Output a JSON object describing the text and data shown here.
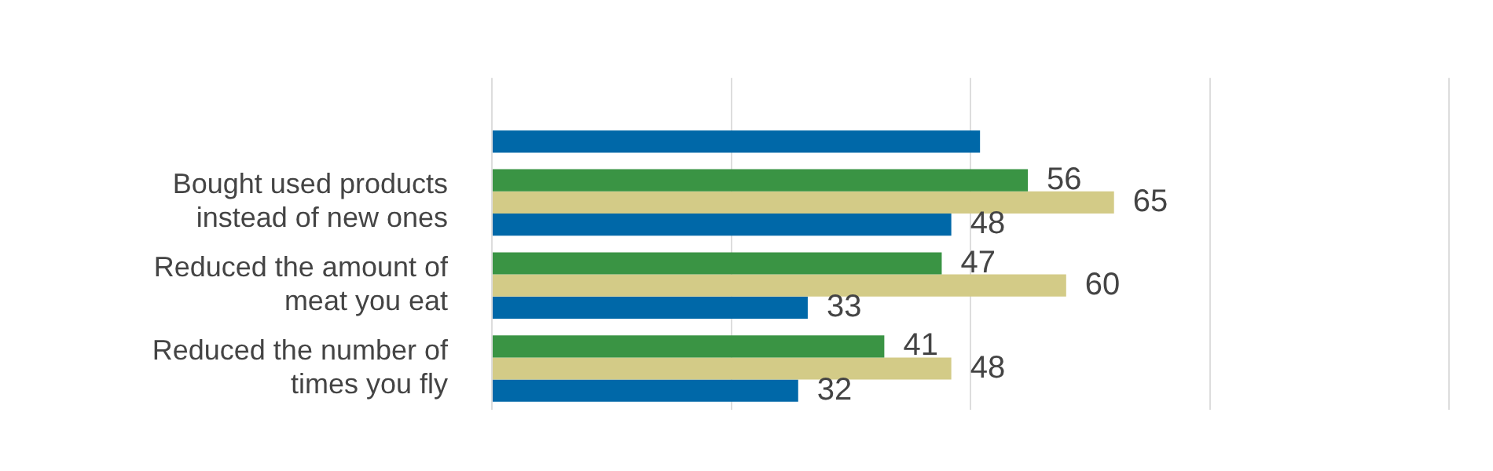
{
  "chart_data": {
    "type": "bar",
    "orientation": "horizontal",
    "categories": [
      null,
      "Bought used products instead of new ones",
      "Reduced the amount of meat you eat",
      "Reduced the number of times you fly"
    ],
    "series": [
      {
        "color": "#3a9444",
        "values": [
          null,
          56,
          47,
          41
        ],
        "value_labels": [
          null,
          "56",
          "47",
          "41"
        ]
      },
      {
        "color": "#d3cb87",
        "values": [
          null,
          65,
          60,
          48
        ],
        "value_labels": [
          null,
          "65",
          "60",
          "48"
        ]
      },
      {
        "color": "#0068a8",
        "values": [
          51,
          48,
          33,
          32
        ],
        "value_labels": [
          null,
          "48",
          "33",
          "32"
        ]
      }
    ],
    "xlim": [
      0,
      100
    ],
    "xticks": [
      0,
      25,
      50,
      75,
      100
    ],
    "tick_labels": "y",
    "grid": "x",
    "legend": false
  }
}
